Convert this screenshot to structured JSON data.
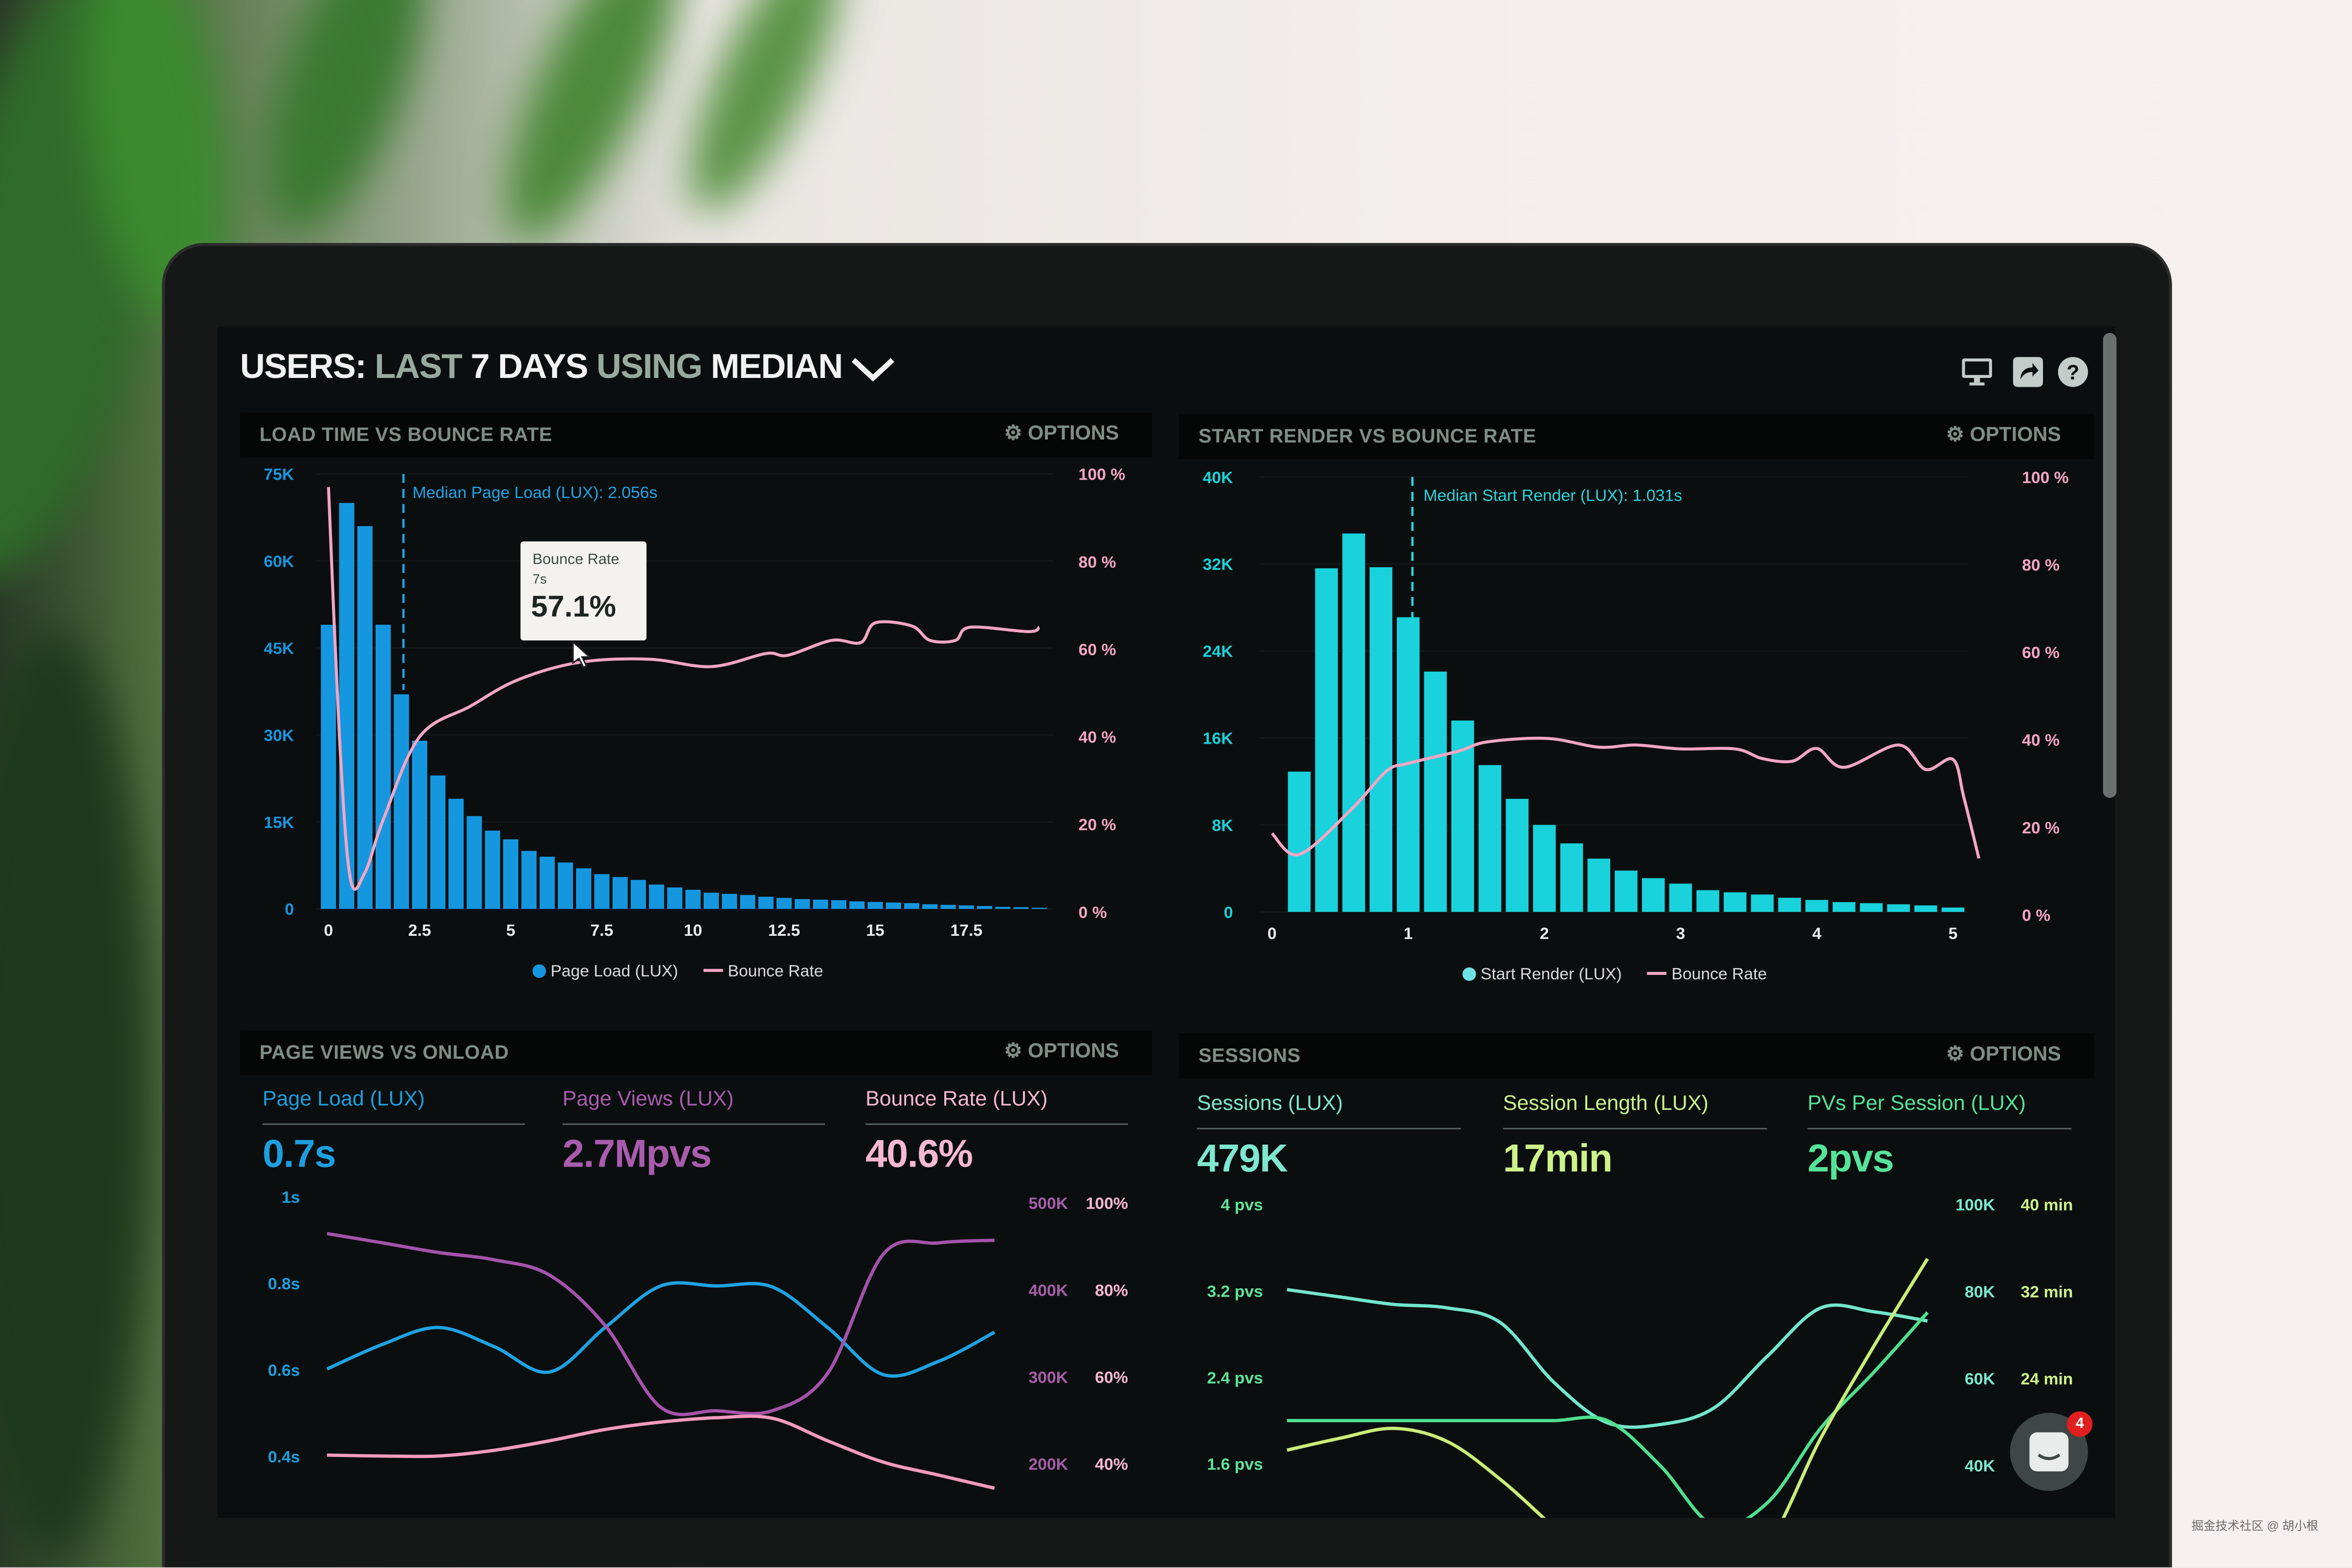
{
  "header": {
    "title": [
      "USERS:",
      "LAST",
      "7 DAYS",
      "USING",
      "MEDIAN"
    ],
    "icons": [
      "monitor-icon",
      "share-icon",
      "help-icon"
    ]
  },
  "options_label": "OPTIONS",
  "panels": {
    "load_time": {
      "title": "LOAD TIME VS BOUNCE RATE"
    },
    "start_render": {
      "title": "START RENDER VS BOUNCE RATE"
    },
    "page_views": {
      "title": "PAGE VIEWS VS ONLOAD",
      "stats": [
        {
          "label": "Page Load (LUX)",
          "value": "0.7s",
          "color": "#1c9fe0"
        },
        {
          "label": "Page Views (LUX)",
          "value": "2.7Mpvs",
          "color": "#a95cae"
        },
        {
          "label": "Bounce Rate (LUX)",
          "value": "40.6%",
          "color": "#f6b8d2"
        }
      ]
    },
    "sessions": {
      "title": "SESSIONS",
      "stats": [
        {
          "label": "Sessions (LUX)",
          "value": "479K",
          "color": "#7ee8cf"
        },
        {
          "label": "Session Length (LUX)",
          "value": "17min",
          "color": "#cdf28a"
        },
        {
          "label": "PVs Per Session (LUX)",
          "value": "2pvs",
          "color": "#55e39a"
        }
      ]
    }
  },
  "chart_data": [
    {
      "type": "bar+line",
      "title": "LOAD TIME VS BOUNCE RATE",
      "x_ticks": [
        "0",
        "2.5",
        "5",
        "7.5",
        "10",
        "12.5",
        "15",
        "17.5"
      ],
      "x_tick_values": [
        0,
        2.5,
        5,
        7.5,
        10,
        12.5,
        15,
        17.5
      ],
      "y_left_ticks": [
        "75K",
        "60K",
        "45K",
        "30K",
        "15K",
        "0"
      ],
      "y_right_ticks": [
        "100 %",
        "80 %",
        "60 %",
        "40 %",
        "20 %",
        "0 %"
      ],
      "ylim_left": [
        0,
        75000
      ],
      "ylim_right": [
        0,
        100
      ],
      "grid": true,
      "colors": {
        "bars": "#1597df",
        "line": "#f3a6c4",
        "median": "#1fa5e6"
      },
      "bars": {
        "name": "Page Load (LUX)",
        "x_start": 0,
        "bin_width": 0.5,
        "values": [
          49000,
          70000,
          66000,
          49000,
          37000,
          29000,
          23000,
          19000,
          16000,
          13500,
          12000,
          10000,
          9000,
          8000,
          7000,
          6000,
          5500,
          5000,
          4200,
          3700,
          3300,
          2800,
          2600,
          2400,
          2100,
          1900,
          1700,
          1600,
          1500,
          1300,
          1200,
          1100,
          1000,
          800,
          700,
          600,
          500,
          350,
          300,
          200
        ]
      },
      "line": {
        "name": "Bounce Rate",
        "points": [
          [
            0,
            97
          ],
          [
            0.3,
            40
          ],
          [
            0.6,
            7.6
          ],
          [
            1.0,
            9
          ],
          [
            1.5,
            21
          ],
          [
            2.5,
            40
          ],
          [
            3.9,
            47
          ],
          [
            5.2,
            53
          ],
          [
            6.9,
            57
          ],
          [
            8.8,
            57.7
          ],
          [
            10.5,
            56
          ],
          [
            12,
            59
          ],
          [
            12.6,
            58.6
          ],
          [
            13.8,
            62
          ],
          [
            14.6,
            61.5
          ],
          [
            15,
            66
          ],
          [
            16,
            65.3
          ],
          [
            16.5,
            62
          ],
          [
            17.2,
            62
          ],
          [
            17.6,
            65
          ],
          [
            19.2,
            64
          ],
          [
            19.5,
            65
          ]
        ]
      },
      "median": {
        "x": 2.056,
        "label": "Median Page Load (LUX): 2.056s"
      },
      "tooltip": {
        "title": "Bounce Rate",
        "subtitle": "7s",
        "value": "57.1%"
      },
      "legend": [
        "Page Load (LUX)",
        "Bounce Rate"
      ]
    },
    {
      "type": "bar+line",
      "title": "START RENDER VS BOUNCE RATE",
      "x_ticks": [
        "0",
        "1",
        "2",
        "3",
        "4",
        "5"
      ],
      "x_tick_values": [
        0,
        1,
        2,
        3,
        4,
        5
      ],
      "y_left_ticks": [
        "40K",
        "32K",
        "24K",
        "16K",
        "8K",
        "0"
      ],
      "y_right_ticks": [
        "100 %",
        "80 %",
        "60 %",
        "40 %",
        "20 %",
        "0 %"
      ],
      "ylim_left": [
        0,
        40000
      ],
      "ylim_right": [
        0,
        100
      ],
      "grid": true,
      "colors": {
        "bars": "#19d2db",
        "line": "#f3a6c4",
        "median": "#27d6df"
      },
      "bars": {
        "name": "Start Render (LUX)",
        "x_start": 0.2,
        "bin_width": 0.2,
        "values": [
          12900,
          31600,
          34800,
          31700,
          27100,
          22100,
          17600,
          13500,
          10400,
          8000,
          6300,
          4900,
          3800,
          3100,
          2600,
          2000,
          1800,
          1600,
          1300,
          1100,
          900,
          800,
          700,
          600,
          400
        ]
      },
      "line": {
        "name": "Bounce Rate",
        "points": [
          [
            0,
            18.6
          ],
          [
            0.2,
            13.8
          ],
          [
            0.58,
            24
          ],
          [
            0.84,
            32.8
          ],
          [
            1.0,
            34.6
          ],
          [
            1.37,
            37.4
          ],
          [
            1.58,
            39.5
          ],
          [
            2.02,
            40.3
          ],
          [
            2.4,
            38.3
          ],
          [
            2.67,
            38.8
          ],
          [
            3.0,
            37.9
          ],
          [
            3.4,
            37.9
          ],
          [
            3.6,
            35.7
          ],
          [
            3.82,
            35.1
          ],
          [
            4.0,
            38
          ],
          [
            4.2,
            33.7
          ],
          [
            4.6,
            38.8
          ],
          [
            4.8,
            33.2
          ],
          [
            5.0,
            35.5
          ],
          [
            5.08,
            26.8
          ],
          [
            5.19,
            12.9
          ]
        ]
      },
      "median": {
        "x": 1.031,
        "label": "Median Start Render (LUX): 1.031s"
      },
      "legend": [
        "Start Render (LUX)",
        "Bounce Rate"
      ]
    },
    {
      "type": "line",
      "title": "PAGE VIEWS VS ONLOAD",
      "y_left_ticks": [
        {
          "label": "1s",
          "value": 1
        },
        {
          "label": "0.8s",
          "value": 0.8
        },
        {
          "label": "0.6s",
          "value": 0.6
        },
        {
          "label": "0.4s",
          "value": 0.4
        }
      ],
      "y_right_ticks_a": [
        {
          "label": "500K",
          "value": 500000
        },
        {
          "label": "400K",
          "value": 400000
        },
        {
          "label": "300K",
          "value": 300000
        },
        {
          "label": "200K",
          "value": 200000
        }
      ],
      "y_right_ticks_b": [
        {
          "label": "100%",
          "value": 100
        },
        {
          "label": "80%",
          "value": 80
        },
        {
          "label": "60%",
          "value": 60
        },
        {
          "label": "40%",
          "value": 40
        }
      ],
      "tick_colors": {
        "left": "#1c9fe0",
        "right_a": "#a55fa9",
        "right_b": "#f6b8d2"
      },
      "series": [
        {
          "key": "page_load",
          "axis": "left",
          "color": "#1ea3e4",
          "values": [
            0.602,
            0.659,
            0.698,
            0.654,
            0.595,
            0.698,
            0.794,
            0.794,
            0.792,
            0.698,
            0.589,
            0.62,
            0.687
          ]
        },
        {
          "key": "page_views",
          "axis": "right_a",
          "color": "#a553ad",
          "values": [
            464700,
            454000,
            443000,
            434600,
            417000,
            359000,
            265000,
            261000,
            261000,
            304000,
            441000,
            454000,
            457000
          ]
        },
        {
          "key": "bounce_rate",
          "axis": "right_b",
          "color": "#f49bbd",
          "values": [
            42,
            41.8,
            41.8,
            43.1,
            45.3,
            47.9,
            49.6,
            50.6,
            50.5,
            45.3,
            40.4,
            37.4,
            34.4
          ]
        }
      ]
    },
    {
      "type": "line",
      "title": "SESSIONS",
      "y_left_ticks": [
        {
          "label": "4 pvs",
          "value": 4
        },
        {
          "label": "3.2 pvs",
          "value": 3.2
        },
        {
          "label": "2.4 pvs",
          "value": 2.4
        },
        {
          "label": "1.6 pvs",
          "value": 1.6
        }
      ],
      "y_right_ticks_a": [
        {
          "label": "100K",
          "value": 100000
        },
        {
          "label": "80K",
          "value": 80000
        },
        {
          "label": "60K",
          "value": 60000
        },
        {
          "label": "40K",
          "value": 40000
        }
      ],
      "y_right_ticks_b": [
        {
          "label": "40 min",
          "value": 40
        },
        {
          "label": "32 min",
          "value": 32
        },
        {
          "label": "24 min",
          "value": 24
        }
      ],
      "tick_colors": {
        "left": "#5fe39c",
        "right_a": "#7ee8cf",
        "right_b": "#cdf28a"
      },
      "series": [
        {
          "key": "sessions",
          "axis": "right_a",
          "color": "#72e6cc",
          "values": [
            80400,
            78700,
            77000,
            76200,
            72800,
            59100,
            49800,
            49400,
            53200,
            65100,
            76200,
            75300,
            73200
          ]
        },
        {
          "key": "pvs_per_session",
          "axis": "left",
          "color": "#4fe08f",
          "values": [
            2.0,
            2.0,
            2.0,
            2.0,
            2.0,
            2.0,
            2.0,
            1.58,
            1.03,
            1.24,
            1.93,
            2.45,
            3.0
          ]
        },
        {
          "key": "session_length",
          "axis": "right_b",
          "color": "#c9ee78",
          "values": [
            17.4,
            18.5,
            19.4,
            18.2,
            14.7,
            10.3,
            6,
            4,
            5,
            8.6,
            18.5,
            27,
            35
          ]
        }
      ]
    }
  ],
  "chat": {
    "badge": "4"
  },
  "watermark": "掘金技术社区 @ 胡小根"
}
